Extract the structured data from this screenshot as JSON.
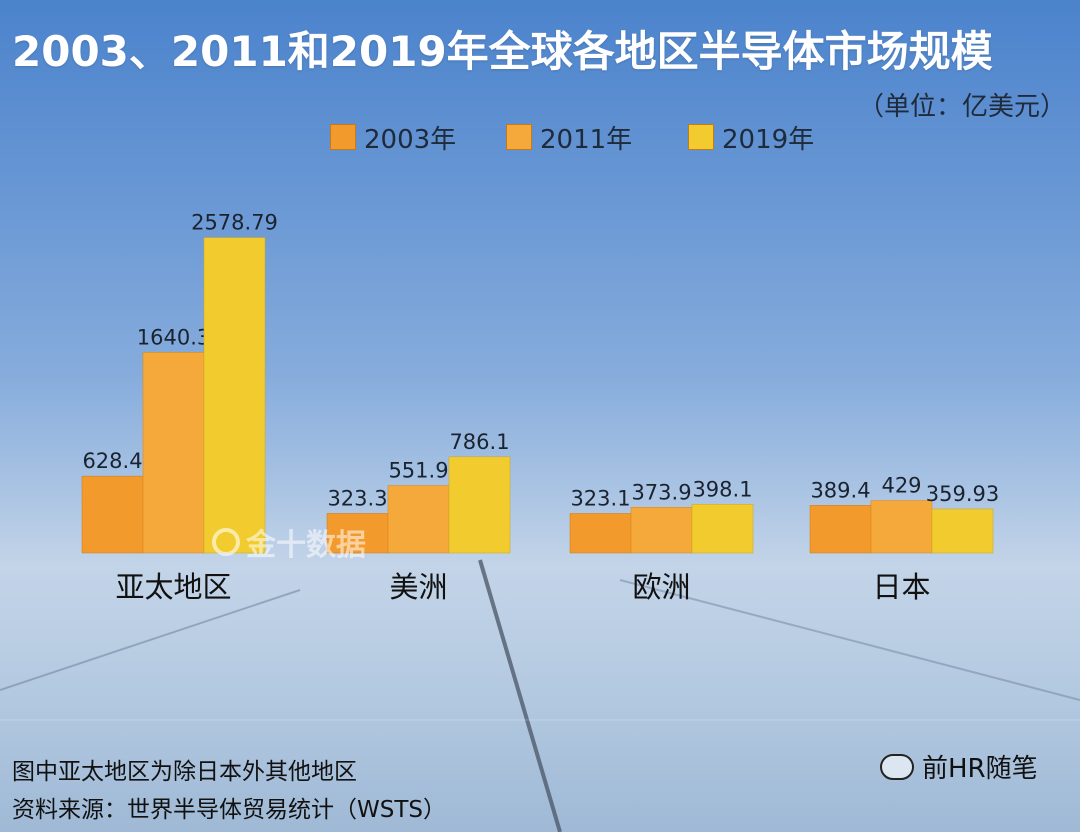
{
  "header": {
    "title": "2003、2011和2019年全球各地区半导体市场规模",
    "unit": "（单位：亿美元）"
  },
  "chart_data": {
    "type": "bar",
    "title": "2003、2011和2019年全球各地区半导体市场规模",
    "ylabel": "",
    "xlabel": "",
    "unit": "亿美元",
    "categories": [
      "亚太地区",
      "美洲",
      "欧洲",
      "日本"
    ],
    "series": [
      {
        "name": "2003年",
        "values": [
          628.4,
          323.3,
          323.1,
          389.4
        ],
        "labels": [
          "628.4",
          "323.3",
          "323.1",
          "389.4"
        ],
        "color": "#f39a2c"
      },
      {
        "name": "2011年",
        "values": [
          1640.3,
          551.9,
          373.9,
          429
        ],
        "labels": [
          "1640.3",
          "551.9",
          "373.9",
          "429"
        ],
        "color": "#f5a93a"
      },
      {
        "name": "2019年",
        "values": [
          2578.79,
          786.1,
          398.1,
          359.93
        ],
        "labels": [
          "2578.79",
          "786.1",
          "398.1",
          "359.93"
        ],
        "color": "#f2cc2e"
      }
    ],
    "ylim": [
      0,
      2600
    ],
    "grid": false,
    "legend": "top"
  },
  "footer": {
    "note": "图中亚太地区为除日本外其他地区",
    "source": "资料来源：世界半导体贸易统计（WSTS）"
  },
  "watermark": {
    "text": "金十数据"
  },
  "brand": {
    "text": "前HR随笔"
  }
}
